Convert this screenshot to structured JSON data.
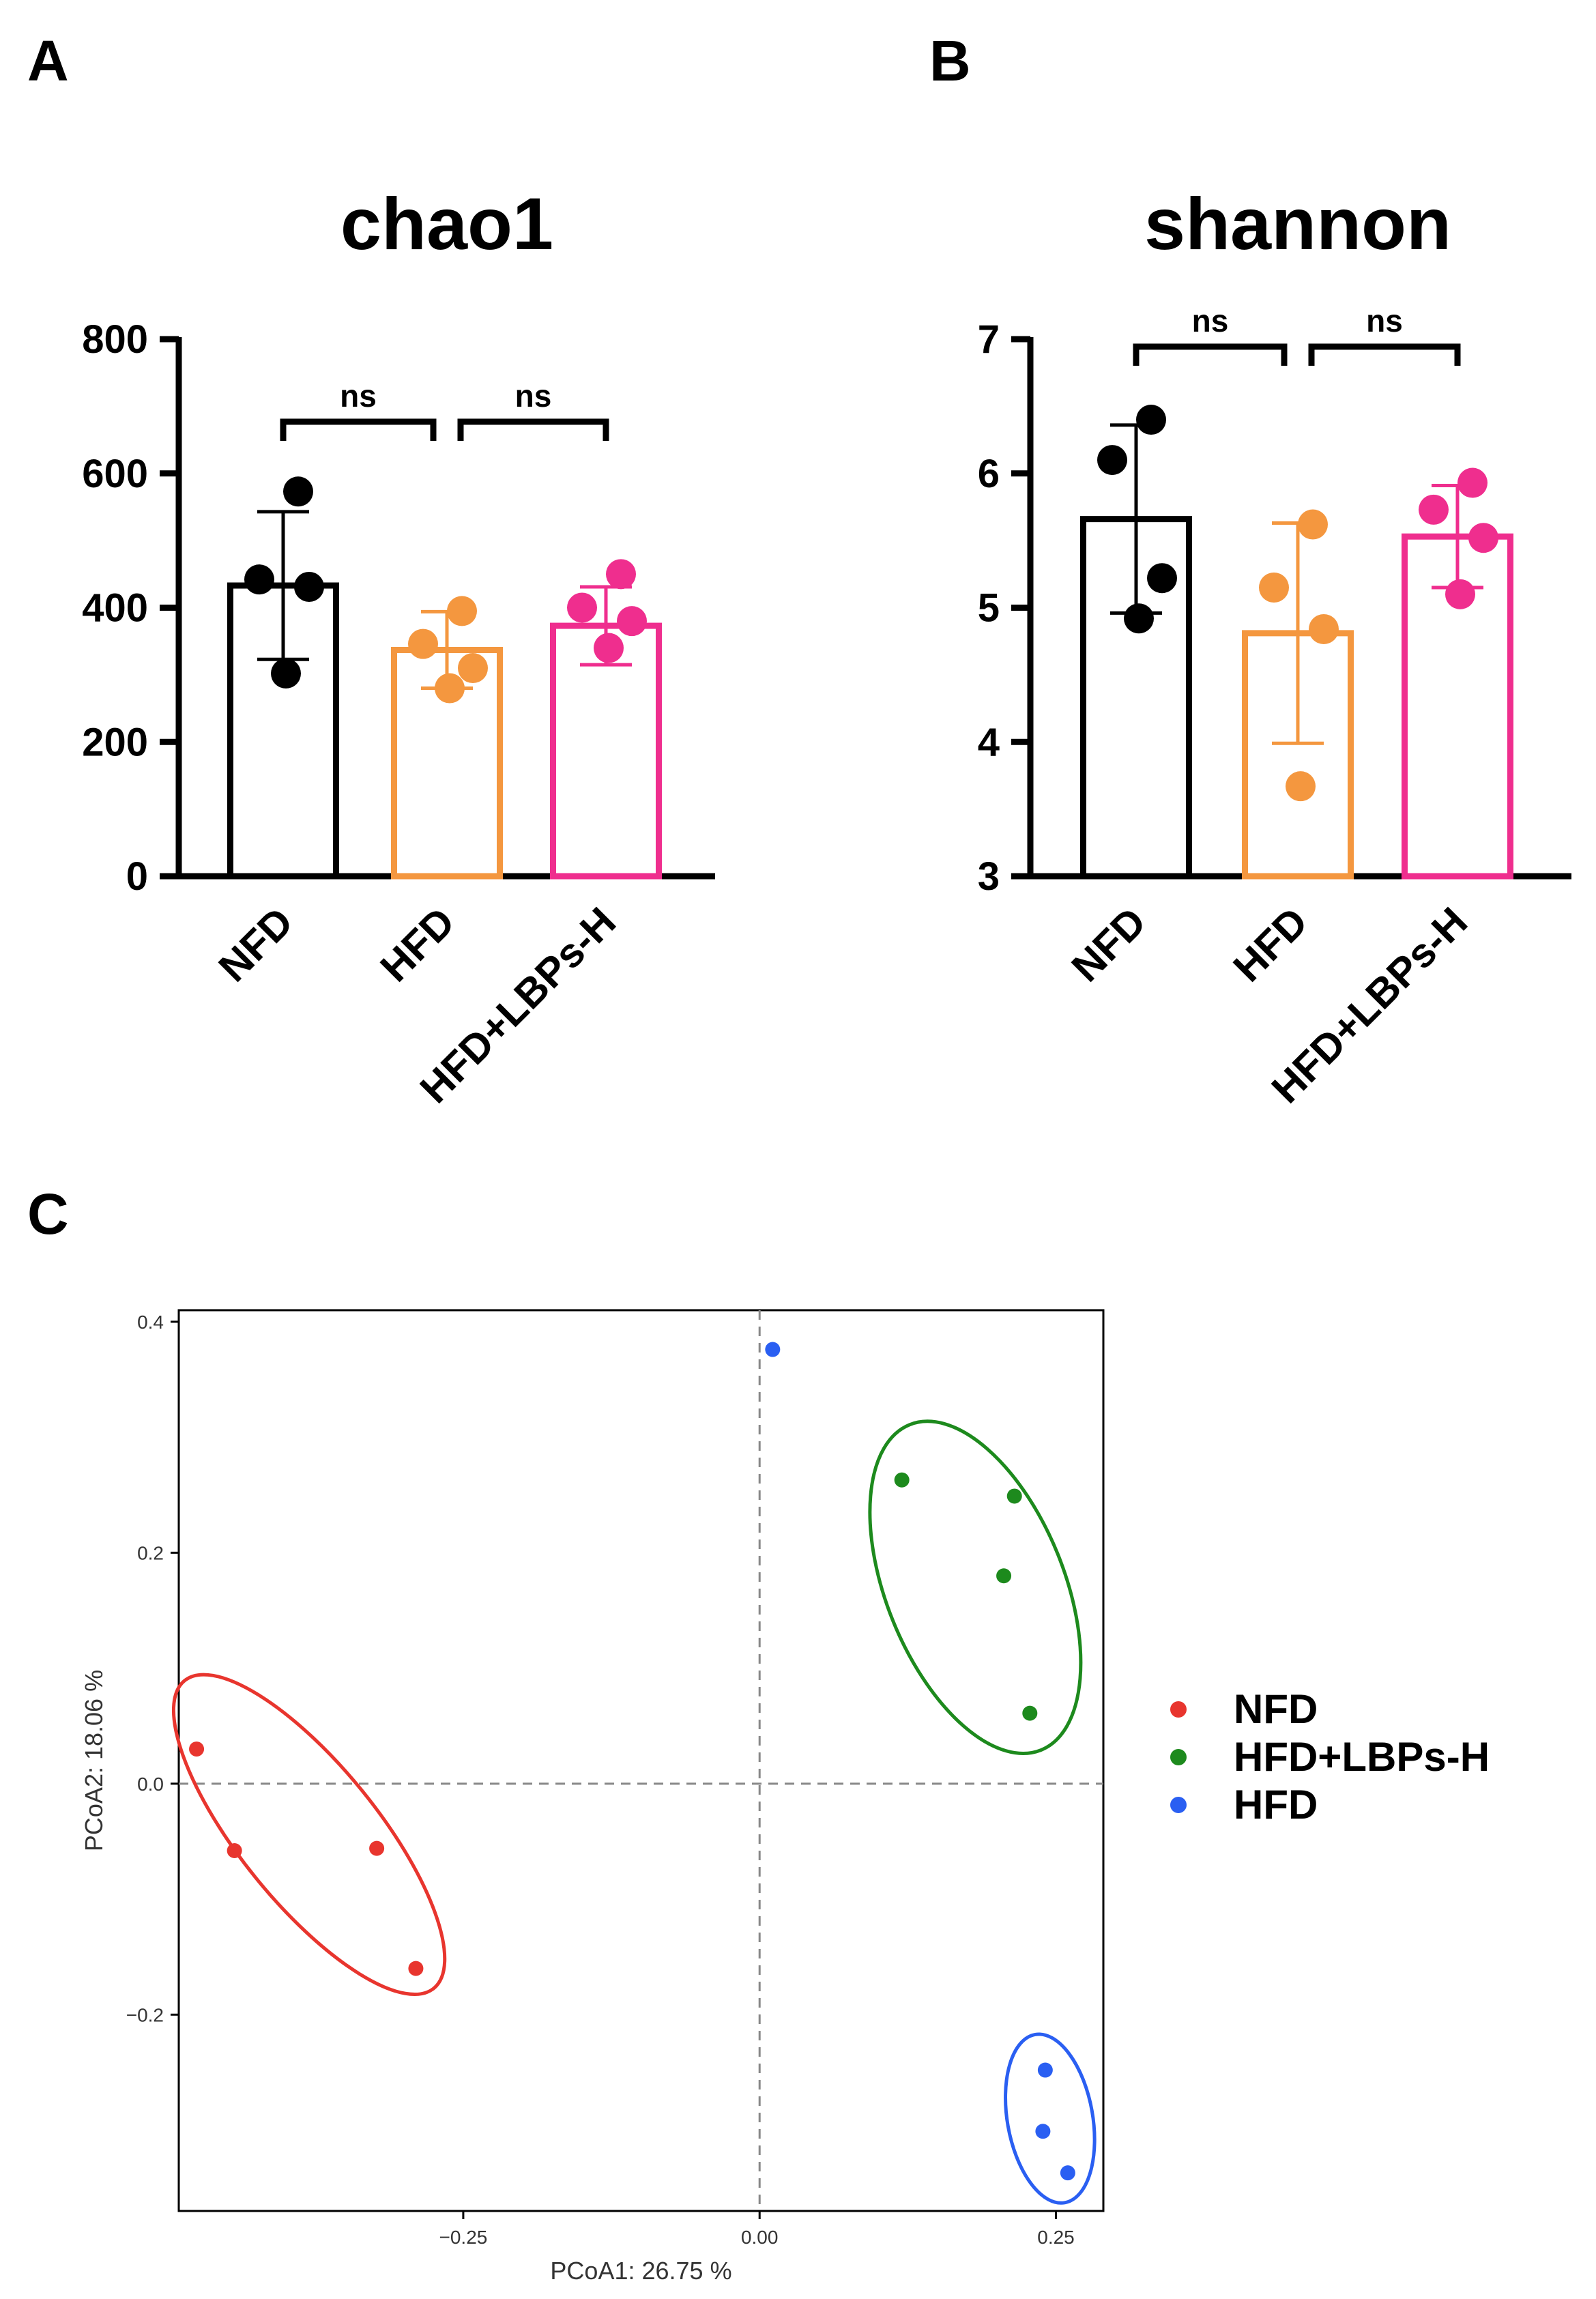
{
  "panels": [
    "A",
    "B",
    "C"
  ],
  "colors": {
    "NFD_bar": "#000000",
    "HFD_bar": "#f4973f",
    "LBP_bar": "#ef2e8e",
    "NFD_pcoa": "#e8352e",
    "LBP_pcoa": "#1d8a1d",
    "HFD_pcoa": "#2a5ff2"
  },
  "chart_data": [
    {
      "type": "bar",
      "title": "chao1",
      "categories": [
        "NFD",
        "HFD",
        "HFD+LBPs-H"
      ],
      "values": [
        433,
        337,
        373
      ],
      "errors": [
        110,
        57,
        58
      ],
      "points": [
        [
          573,
          442,
          431,
          302
        ],
        [
          395,
          346,
          310,
          280
        ],
        [
          450,
          400,
          380,
          340
        ]
      ],
      "ylim": [
        0,
        800
      ],
      "yticks": [
        "0",
        "200",
        "400",
        "600",
        "800"
      ],
      "significance": [
        {
          "from": 0,
          "to": 1,
          "label": "ns"
        },
        {
          "from": 1,
          "to": 2,
          "label": "ns"
        }
      ]
    },
    {
      "type": "bar",
      "title": "shannon",
      "categories": [
        "NFD",
        "HFD",
        "HFD+LBPs-H"
      ],
      "values": [
        5.66,
        4.81,
        5.53
      ],
      "errors": [
        0.7,
        0.82,
        0.38
      ],
      "points": [
        [
          6.4,
          6.1,
          5.22,
          4.92
        ],
        [
          5.62,
          5.15,
          4.84,
          3.67
        ],
        [
          5.93,
          5.73,
          5.52,
          5.1
        ]
      ],
      "ylim": [
        3,
        7
      ],
      "yticks": [
        "3",
        "4",
        "5",
        "6",
        "7"
      ],
      "significance": [
        {
          "from": 0,
          "to": 1,
          "label": "ns"
        },
        {
          "from": 1,
          "to": 2,
          "label": "ns"
        }
      ]
    },
    {
      "type": "scatter",
      "xlabel": "PCoA1:  26.75 %",
      "ylabel": "PCoA2:  18.06 %",
      "xlim": [
        -0.49,
        0.29
      ],
      "ylim": [
        -0.37,
        0.41
      ],
      "xticks": [
        -0.25,
        0.0,
        0.25
      ],
      "xtick_labels": [
        "−0.25",
        "0.00",
        "0.25"
      ],
      "yticks": [
        -0.2,
        0.0,
        0.2,
        0.4
      ],
      "ytick_labels": [
        "−0.2",
        "0.0",
        "0.2",
        "0.4"
      ],
      "legend_position": "right",
      "series": [
        {
          "name": "NFD",
          "points": [
            [
              -0.475,
              0.03
            ],
            [
              -0.443,
              -0.058
            ],
            [
              -0.323,
              -0.056
            ],
            [
              -0.29,
              -0.16
            ]
          ],
          "ellipse": {
            "cx": -0.38,
            "cy": -0.044,
            "rx": 0.167,
            "ry": 0.058,
            "angle": 51
          }
        },
        {
          "name": "HFD+LBPs-H",
          "points": [
            [
              0.12,
              0.263
            ],
            [
              0.215,
              0.249
            ],
            [
              0.206,
              0.18
            ],
            [
              0.228,
              0.061
            ]
          ],
          "ellipse": {
            "cx": 0.182,
            "cy": 0.17,
            "rx": 0.148,
            "ry": 0.075,
            "angle": 68
          }
        },
        {
          "name": "HFD",
          "points": [
            [
              0.011,
              0.376
            ],
            [
              0.241,
              -0.248
            ],
            [
              0.239,
              -0.301
            ],
            [
              0.26,
              -0.337
            ]
          ],
          "ellipse": {
            "cx": 0.245,
            "cy": -0.29,
            "rx": 0.072,
            "ry": 0.036,
            "angle": 80
          }
        }
      ]
    }
  ]
}
